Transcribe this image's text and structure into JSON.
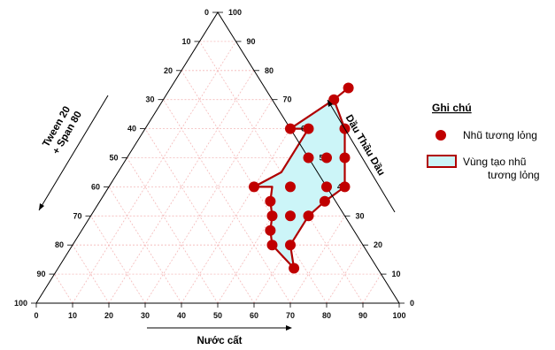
{
  "chart_data": {
    "type": "scatter",
    "subtype": "ternary",
    "axes": {
      "left": {
        "label_line1": "Tween 20",
        "label_line2": "+ Span 80"
      },
      "right": {
        "label": "Dầu Thầu Dầu"
      },
      "bottom": {
        "label": "Nước cất"
      }
    },
    "ticks": [
      "0",
      "10",
      "20",
      "30",
      "40",
      "50",
      "60",
      "70",
      "80",
      "90",
      "100"
    ],
    "grid": true,
    "grid_color": "#f4b8b8",
    "legend_position": "right",
    "legend": {
      "title": "Ghi chú",
      "points_label": "Nhũ tương lỏng",
      "region_label_line1": "Vùng tạo nhũ",
      "region_label_line2": "tương lỏng"
    },
    "series": [
      {
        "name": "Nhũ tương lỏng",
        "marker_color": "#c00000",
        "points": [
          {
            "water": 49,
            "oil": 74
          },
          {
            "water": 47,
            "oil": 70
          },
          {
            "water": 40,
            "oil": 60
          },
          {
            "water": 45,
            "oil": 60
          },
          {
            "water": 55,
            "oil": 60
          },
          {
            "water": 50,
            "oil": 50
          },
          {
            "water": 55,
            "oil": 50
          },
          {
            "water": 60,
            "oil": 50
          },
          {
            "water": 40,
            "oil": 40
          },
          {
            "water": 50,
            "oil": 40
          },
          {
            "water": 60,
            "oil": 40
          },
          {
            "water": 65,
            "oil": 40
          },
          {
            "water": 47,
            "oil": 35
          },
          {
            "water": 62,
            "oil": 35
          },
          {
            "water": 50,
            "oil": 30
          },
          {
            "water": 55,
            "oil": 30
          },
          {
            "water": 60,
            "oil": 30
          },
          {
            "water": 52,
            "oil": 25
          },
          {
            "water": 55,
            "oil": 20
          },
          {
            "water": 60,
            "oil": 20
          },
          {
            "water": 65,
            "oil": 12
          }
        ]
      }
    ],
    "region": {
      "name": "Vùng tạo nhũ tương lỏng",
      "fill": "#ccf5f8",
      "stroke": "#b00000",
      "vertices": [
        {
          "water": 49,
          "oil": 74
        },
        {
          "water": 47,
          "oil": 70
        },
        {
          "water": 55,
          "oil": 60
        },
        {
          "water": 60,
          "oil": 50
        },
        {
          "water": 65,
          "oil": 40
        },
        {
          "water": 62,
          "oil": 35
        },
        {
          "water": 60,
          "oil": 30
        },
        {
          "water": 60,
          "oil": 20
        },
        {
          "water": 65,
          "oil": 12
        },
        {
          "water": 55,
          "oil": 20
        },
        {
          "water": 52,
          "oil": 25
        },
        {
          "water": 50,
          "oil": 30
        },
        {
          "water": 47,
          "oil": 35
        },
        {
          "water": 45,
          "oil": 40
        },
        {
          "water": 40,
          "oil": 40
        },
        {
          "water": 45,
          "oil": 45
        },
        {
          "water": 45,
          "oil": 60
        },
        {
          "water": 40,
          "oil": 60
        },
        {
          "water": 47,
          "oil": 70
        }
      ]
    }
  }
}
